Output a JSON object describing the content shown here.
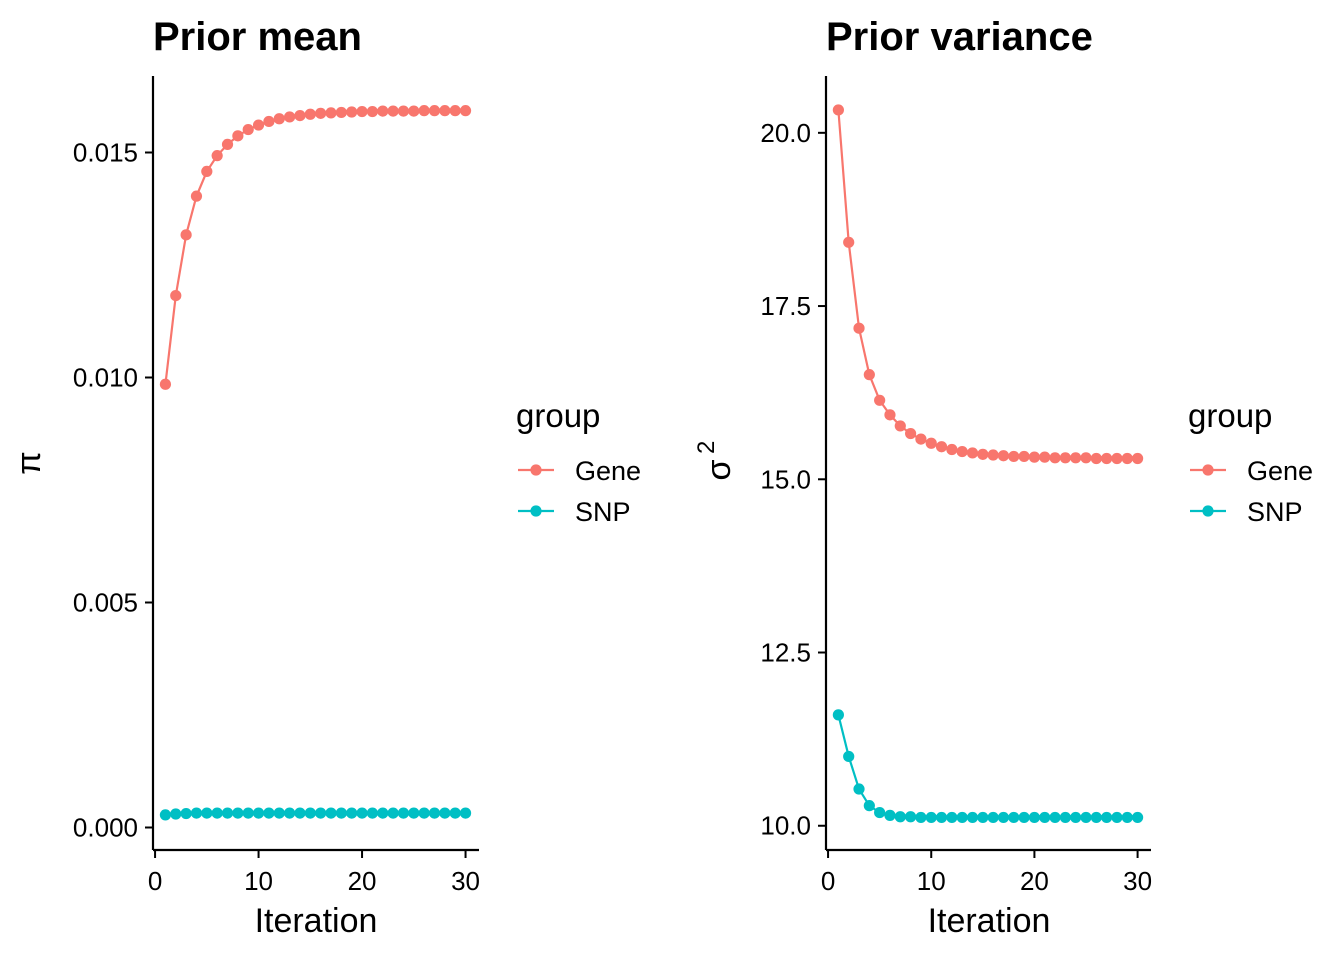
{
  "chart_data": [
    {
      "type": "line",
      "title": "Prior mean",
      "xlabel": "Iteration",
      "ylabel": "π",
      "xlim": [
        -0.2,
        31.3
      ],
      "ylim": [
        -0.0005,
        0.0167
      ],
      "xticks": [
        0,
        10,
        20,
        30
      ],
      "xtick_labels": [
        "0",
        "10",
        "20",
        "30"
      ],
      "yticks": [
        0.0,
        0.005,
        0.01,
        0.015
      ],
      "ytick_labels": [
        "0.000",
        "0.005",
        "0.010",
        "0.015"
      ],
      "grid": false,
      "legend": {
        "title": "group",
        "position": "right"
      },
      "x": [
        1,
        2,
        3,
        4,
        5,
        6,
        7,
        8,
        9,
        10,
        11,
        12,
        13,
        14,
        15,
        16,
        17,
        18,
        19,
        20,
        21,
        22,
        23,
        24,
        25,
        26,
        27,
        28,
        29,
        30
      ],
      "series": [
        {
          "name": "Gene",
          "color": "#F8766D",
          "values": [
            0.00985,
            0.01182,
            0.01317,
            0.01403,
            0.01458,
            0.01493,
            0.01518,
            0.01537,
            0.01551,
            0.01561,
            0.01569,
            0.01575,
            0.01579,
            0.01582,
            0.01585,
            0.01587,
            0.01588,
            0.01589,
            0.0159,
            0.01591,
            0.01591,
            0.01592,
            0.01592,
            0.01592,
            0.01592,
            0.01593,
            0.01593,
            0.01593,
            0.01593,
            0.01593
          ]
        },
        {
          "name": "SNP",
          "color": "#00BFC4",
          "values": [
            0.00028,
            0.0003,
            0.00031,
            0.00032,
            0.00032,
            0.00032,
            0.00032,
            0.00032,
            0.00032,
            0.00032,
            0.00032,
            0.00032,
            0.00032,
            0.00032,
            0.00032,
            0.00032,
            0.00032,
            0.00032,
            0.00032,
            0.00032,
            0.00032,
            0.00032,
            0.00032,
            0.00032,
            0.00032,
            0.00032,
            0.00032,
            0.00032,
            0.00032,
            0.00032
          ]
        }
      ]
    },
    {
      "type": "line",
      "title": "Prior variance",
      "xlabel": "Iteration",
      "ylabel": "σ",
      "ylabel_superscript": "2",
      "xlim": [
        -0.2,
        31.3
      ],
      "ylim": [
        9.65,
        20.82
      ],
      "xticks": [
        0,
        10,
        20,
        30
      ],
      "xtick_labels": [
        "0",
        "10",
        "20",
        "30"
      ],
      "yticks": [
        10.0,
        12.5,
        15.0,
        17.5,
        20.0
      ],
      "ytick_labels": [
        "10.0",
        "12.5",
        "15.0",
        "17.5",
        "20.0"
      ],
      "grid": false,
      "legend": {
        "title": "group",
        "position": "right"
      },
      "x": [
        1,
        2,
        3,
        4,
        5,
        6,
        7,
        8,
        9,
        10,
        11,
        12,
        13,
        14,
        15,
        16,
        17,
        18,
        19,
        20,
        21,
        22,
        23,
        24,
        25,
        26,
        27,
        28,
        29,
        30
      ],
      "series": [
        {
          "name": "Gene",
          "color": "#F8766D",
          "values": [
            20.33,
            18.42,
            17.18,
            16.51,
            16.14,
            15.93,
            15.77,
            15.66,
            15.58,
            15.52,
            15.47,
            15.43,
            15.4,
            15.38,
            15.36,
            15.35,
            15.34,
            15.33,
            15.33,
            15.32,
            15.32,
            15.31,
            15.31,
            15.31,
            15.31,
            15.3,
            15.3,
            15.3,
            15.3,
            15.3
          ]
        },
        {
          "name": "SNP",
          "color": "#00BFC4",
          "values": [
            11.6,
            11.0,
            10.53,
            10.29,
            10.19,
            10.15,
            10.13,
            10.13,
            10.12,
            10.12,
            10.12,
            10.12,
            10.12,
            10.12,
            10.12,
            10.12,
            10.12,
            10.12,
            10.12,
            10.12,
            10.12,
            10.12,
            10.12,
            10.12,
            10.12,
            10.12,
            10.12,
            10.12,
            10.12,
            10.12
          ]
        }
      ]
    }
  ]
}
